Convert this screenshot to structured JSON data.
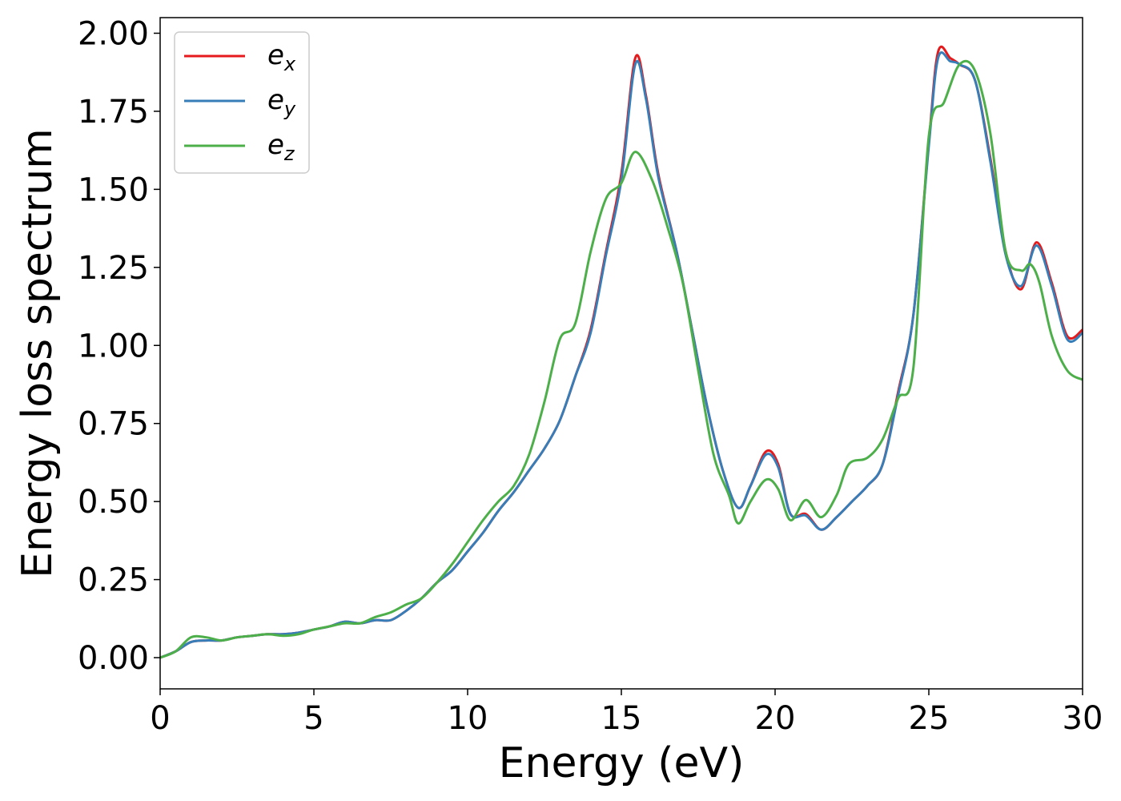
{
  "chart_data": {
    "type": "line",
    "title": "",
    "xlabel": "Energy (eV)",
    "ylabel": "Energy loss spectrum",
    "xlim": [
      0,
      30
    ],
    "ylim": [
      -0.1,
      2.05
    ],
    "xticks": [
      0,
      5,
      10,
      15,
      20,
      25,
      30
    ],
    "xtick_labels": [
      "0",
      "5",
      "10",
      "15",
      "20",
      "25",
      "30"
    ],
    "yticks": [
      0,
      0.25,
      0.5,
      0.75,
      1.0,
      1.25,
      1.5,
      1.75,
      2.0
    ],
    "ytick_labels": [
      "0.00",
      "0.25",
      "0.50",
      "0.75",
      "1.00",
      "1.25",
      "1.50",
      "1.75",
      "2.00"
    ],
    "grid": false,
    "legend_position": "top-left",
    "series": [
      {
        "name": "e",
        "subscript": "x",
        "color": "#e41a1c",
        "points": [
          [
            0,
            0
          ],
          [
            0.5,
            0.02
          ],
          [
            1,
            0.05
          ],
          [
            1.5,
            0.055
          ],
          [
            2,
            0.055
          ],
          [
            2.5,
            0.065
          ],
          [
            3,
            0.07
          ],
          [
            3.5,
            0.075
          ],
          [
            4,
            0.075
          ],
          [
            4.5,
            0.08
          ],
          [
            5,
            0.09
          ],
          [
            5.5,
            0.1
          ],
          [
            6,
            0.115
          ],
          [
            6.5,
            0.11
          ],
          [
            7,
            0.12
          ],
          [
            7.5,
            0.12
          ],
          [
            8,
            0.15
          ],
          [
            8.5,
            0.19
          ],
          [
            9,
            0.24
          ],
          [
            9.5,
            0.28
          ],
          [
            10,
            0.34
          ],
          [
            10.5,
            0.4
          ],
          [
            11,
            0.47
          ],
          [
            11.5,
            0.53
          ],
          [
            12,
            0.6
          ],
          [
            12.5,
            0.67
          ],
          [
            13,
            0.76
          ],
          [
            13.5,
            0.9
          ],
          [
            14,
            1.05
          ],
          [
            14.5,
            1.3
          ],
          [
            15,
            1.55
          ],
          [
            15.45,
            1.92
          ],
          [
            15.8,
            1.8
          ],
          [
            16.2,
            1.55
          ],
          [
            16.8,
            1.3
          ],
          [
            17.3,
            1.05
          ],
          [
            17.8,
            0.8
          ],
          [
            18.3,
            0.6
          ],
          [
            18.8,
            0.48
          ],
          [
            19.2,
            0.55
          ],
          [
            19.7,
            0.66
          ],
          [
            20.1,
            0.62
          ],
          [
            20.5,
            0.46
          ],
          [
            21,
            0.46
          ],
          [
            21.5,
            0.41
          ],
          [
            22,
            0.45
          ],
          [
            22.5,
            0.5
          ],
          [
            23,
            0.55
          ],
          [
            23.5,
            0.62
          ],
          [
            24,
            0.85
          ],
          [
            24.5,
            1.1
          ],
          [
            25,
            1.65
          ],
          [
            25.3,
            1.94
          ],
          [
            25.7,
            1.92
          ],
          [
            26,
            1.9
          ],
          [
            26.5,
            1.85
          ],
          [
            27,
            1.6
          ],
          [
            27.5,
            1.3
          ],
          [
            28,
            1.18
          ],
          [
            28.5,
            1.33
          ],
          [
            29,
            1.2
          ],
          [
            29.5,
            1.03
          ],
          [
            30,
            1.05
          ]
        ]
      },
      {
        "name": "e",
        "subscript": "y",
        "color": "#377eb8",
        "points": [
          [
            0,
            0
          ],
          [
            0.5,
            0.02
          ],
          [
            1,
            0.05
          ],
          [
            1.5,
            0.055
          ],
          [
            2,
            0.055
          ],
          [
            2.5,
            0.065
          ],
          [
            3,
            0.07
          ],
          [
            3.5,
            0.075
          ],
          [
            4,
            0.075
          ],
          [
            4.5,
            0.08
          ],
          [
            5,
            0.09
          ],
          [
            5.5,
            0.1
          ],
          [
            6,
            0.115
          ],
          [
            6.5,
            0.11
          ],
          [
            7,
            0.12
          ],
          [
            7.5,
            0.12
          ],
          [
            8,
            0.15
          ],
          [
            8.5,
            0.19
          ],
          [
            9,
            0.24
          ],
          [
            9.5,
            0.28
          ],
          [
            10,
            0.34
          ],
          [
            10.5,
            0.4
          ],
          [
            11,
            0.47
          ],
          [
            11.5,
            0.53
          ],
          [
            12,
            0.6
          ],
          [
            12.5,
            0.67
          ],
          [
            13,
            0.76
          ],
          [
            13.5,
            0.9
          ],
          [
            14,
            1.04
          ],
          [
            14.5,
            1.29
          ],
          [
            15,
            1.53
          ],
          [
            15.45,
            1.9
          ],
          [
            15.8,
            1.79
          ],
          [
            16.2,
            1.54
          ],
          [
            16.8,
            1.3
          ],
          [
            17.3,
            1.05
          ],
          [
            17.8,
            0.8
          ],
          [
            18.3,
            0.6
          ],
          [
            18.8,
            0.48
          ],
          [
            19.2,
            0.55
          ],
          [
            19.7,
            0.65
          ],
          [
            20.1,
            0.61
          ],
          [
            20.5,
            0.46
          ],
          [
            21,
            0.455
          ],
          [
            21.5,
            0.41
          ],
          [
            22,
            0.45
          ],
          [
            22.5,
            0.5
          ],
          [
            23,
            0.55
          ],
          [
            23.5,
            0.62
          ],
          [
            24,
            0.84
          ],
          [
            24.5,
            1.1
          ],
          [
            25,
            1.64
          ],
          [
            25.3,
            1.92
          ],
          [
            25.7,
            1.91
          ],
          [
            26,
            1.9
          ],
          [
            26.5,
            1.85
          ],
          [
            27,
            1.59
          ],
          [
            27.5,
            1.29
          ],
          [
            28,
            1.19
          ],
          [
            28.5,
            1.32
          ],
          [
            29,
            1.19
          ],
          [
            29.5,
            1.02
          ],
          [
            30,
            1.04
          ]
        ]
      },
      {
        "name": "e",
        "subscript": "z",
        "color": "#4daf4a",
        "points": [
          [
            0,
            0
          ],
          [
            0.5,
            0.02
          ],
          [
            1,
            0.065
          ],
          [
            1.5,
            0.065
          ],
          [
            2,
            0.055
          ],
          [
            2.5,
            0.065
          ],
          [
            3,
            0.07
          ],
          [
            3.5,
            0.075
          ],
          [
            4,
            0.07
          ],
          [
            4.5,
            0.075
          ],
          [
            5,
            0.09
          ],
          [
            5.5,
            0.1
          ],
          [
            6,
            0.11
          ],
          [
            6.5,
            0.11
          ],
          [
            7,
            0.13
          ],
          [
            7.5,
            0.145
          ],
          [
            8,
            0.17
          ],
          [
            8.5,
            0.19
          ],
          [
            9,
            0.24
          ],
          [
            9.5,
            0.3
          ],
          [
            10,
            0.37
          ],
          [
            10.5,
            0.44
          ],
          [
            11,
            0.5
          ],
          [
            11.5,
            0.55
          ],
          [
            12,
            0.65
          ],
          [
            12.5,
            0.82
          ],
          [
            13,
            1.02
          ],
          [
            13.5,
            1.07
          ],
          [
            14,
            1.3
          ],
          [
            14.5,
            1.47
          ],
          [
            15,
            1.52
          ],
          [
            15.45,
            1.62
          ],
          [
            16,
            1.53
          ],
          [
            16.5,
            1.38
          ],
          [
            17,
            1.2
          ],
          [
            17.5,
            0.92
          ],
          [
            18,
            0.65
          ],
          [
            18.5,
            0.52
          ],
          [
            18.8,
            0.43
          ],
          [
            19.2,
            0.5
          ],
          [
            19.7,
            0.57
          ],
          [
            20.1,
            0.54
          ],
          [
            20.5,
            0.44
          ],
          [
            21,
            0.505
          ],
          [
            21.5,
            0.45
          ],
          [
            22,
            0.52
          ],
          [
            22.4,
            0.62
          ],
          [
            23,
            0.64
          ],
          [
            23.5,
            0.7
          ],
          [
            24,
            0.83
          ],
          [
            24.5,
            0.93
          ],
          [
            25,
            1.67
          ],
          [
            25.5,
            1.78
          ],
          [
            26,
            1.9
          ],
          [
            26.5,
            1.88
          ],
          [
            27,
            1.68
          ],
          [
            27.5,
            1.3
          ],
          [
            28,
            1.24
          ],
          [
            28.3,
            1.26
          ],
          [
            28.6,
            1.2
          ],
          [
            29,
            1.03
          ],
          [
            29.5,
            0.92
          ],
          [
            30,
            0.89
          ]
        ]
      }
    ]
  }
}
